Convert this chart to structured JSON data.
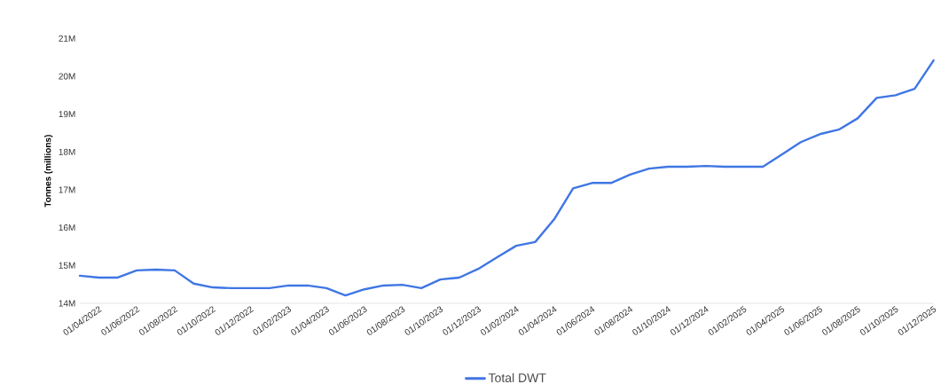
{
  "chart_data": {
    "type": "line",
    "ylabel": "Tonnes (millions)",
    "x": [
      "2022-03",
      "2022-04",
      "2022-05",
      "2022-06",
      "2022-07",
      "2022-08",
      "2022-09",
      "2022-10",
      "2022-11",
      "2022-12",
      "2023-01",
      "2023-02",
      "2023-03",
      "2023-04",
      "2023-05",
      "2023-06",
      "2023-07",
      "2023-08",
      "2023-09",
      "2023-10",
      "2023-11",
      "2023-12",
      "2024-01",
      "2024-02",
      "2024-03",
      "2024-04",
      "2024-05",
      "2024-06",
      "2024-07",
      "2024-08",
      "2024-09",
      "2024-10",
      "2024-11",
      "2024-12",
      "2025-01",
      "2025-02",
      "2025-03",
      "2025-04",
      "2025-05",
      "2025-06",
      "2025-07",
      "2025-08",
      "2025-09",
      "2025-10",
      "2025-11",
      "2025-12"
    ],
    "series": [
      {
        "name": "Total DWT",
        "color": "#3f76e4",
        "values": [
          14.73,
          14.68,
          14.68,
          14.87,
          14.89,
          14.87,
          14.52,
          14.42,
          14.4,
          14.4,
          14.4,
          14.47,
          14.47,
          14.4,
          14.21,
          14.37,
          14.47,
          14.49,
          14.4,
          14.63,
          14.68,
          14.91,
          15.22,
          15.52,
          15.62,
          16.22,
          17.04,
          17.18,
          17.18,
          17.4,
          17.56,
          17.61,
          17.61,
          17.63,
          17.61,
          17.61,
          17.61,
          17.93,
          18.26,
          18.47,
          18.59,
          18.89,
          19.43,
          19.5,
          19.67,
          20.42
        ]
      }
    ],
    "xticks": [
      {
        "value": "2022-04",
        "label": "01/04/2022"
      },
      {
        "value": "2022-06",
        "label": "01/06/2022"
      },
      {
        "value": "2022-08",
        "label": "01/08/2022"
      },
      {
        "value": "2022-10",
        "label": "01/10/2022"
      },
      {
        "value": "2022-12",
        "label": "01/12/2022"
      },
      {
        "value": "2023-02",
        "label": "01/02/2023"
      },
      {
        "value": "2023-04",
        "label": "01/04/2023"
      },
      {
        "value": "2023-06",
        "label": "01/06/2023"
      },
      {
        "value": "2023-08",
        "label": "01/08/2023"
      },
      {
        "value": "2023-10",
        "label": "01/10/2023"
      },
      {
        "value": "2023-12",
        "label": "01/12/2023"
      },
      {
        "value": "2024-02",
        "label": "01/02/2024"
      },
      {
        "value": "2024-04",
        "label": "01/04/2024"
      },
      {
        "value": "2024-06",
        "label": "01/06/2024"
      },
      {
        "value": "2024-08",
        "label": "01/08/2024"
      },
      {
        "value": "2024-10",
        "label": "01/10/2024"
      },
      {
        "value": "2024-12",
        "label": "01/12/2024"
      },
      {
        "value": "2025-02",
        "label": "01/02/2025"
      },
      {
        "value": "2025-04",
        "label": "01/04/2025"
      },
      {
        "value": "2025-06",
        "label": "01/06/2025"
      },
      {
        "value": "2025-08",
        "label": "01/08/2025"
      },
      {
        "value": "2025-10",
        "label": "01/10/2025"
      },
      {
        "value": "2025-12",
        "label": "01/12/2025"
      }
    ],
    "xlim": [
      "2022-03",
      "2025-12"
    ],
    "ylim": [
      14,
      21
    ],
    "yticks": [
      {
        "value": 14,
        "label": "14M"
      },
      {
        "value": 15,
        "label": "15M"
      },
      {
        "value": 16,
        "label": "16M"
      },
      {
        "value": 17,
        "label": "17M"
      },
      {
        "value": 18,
        "label": "18M"
      },
      {
        "value": 19,
        "label": "19M"
      },
      {
        "value": 20,
        "label": "20M"
      },
      {
        "value": 21,
        "label": "21M"
      }
    ],
    "grid": false,
    "legend": "bottom"
  }
}
